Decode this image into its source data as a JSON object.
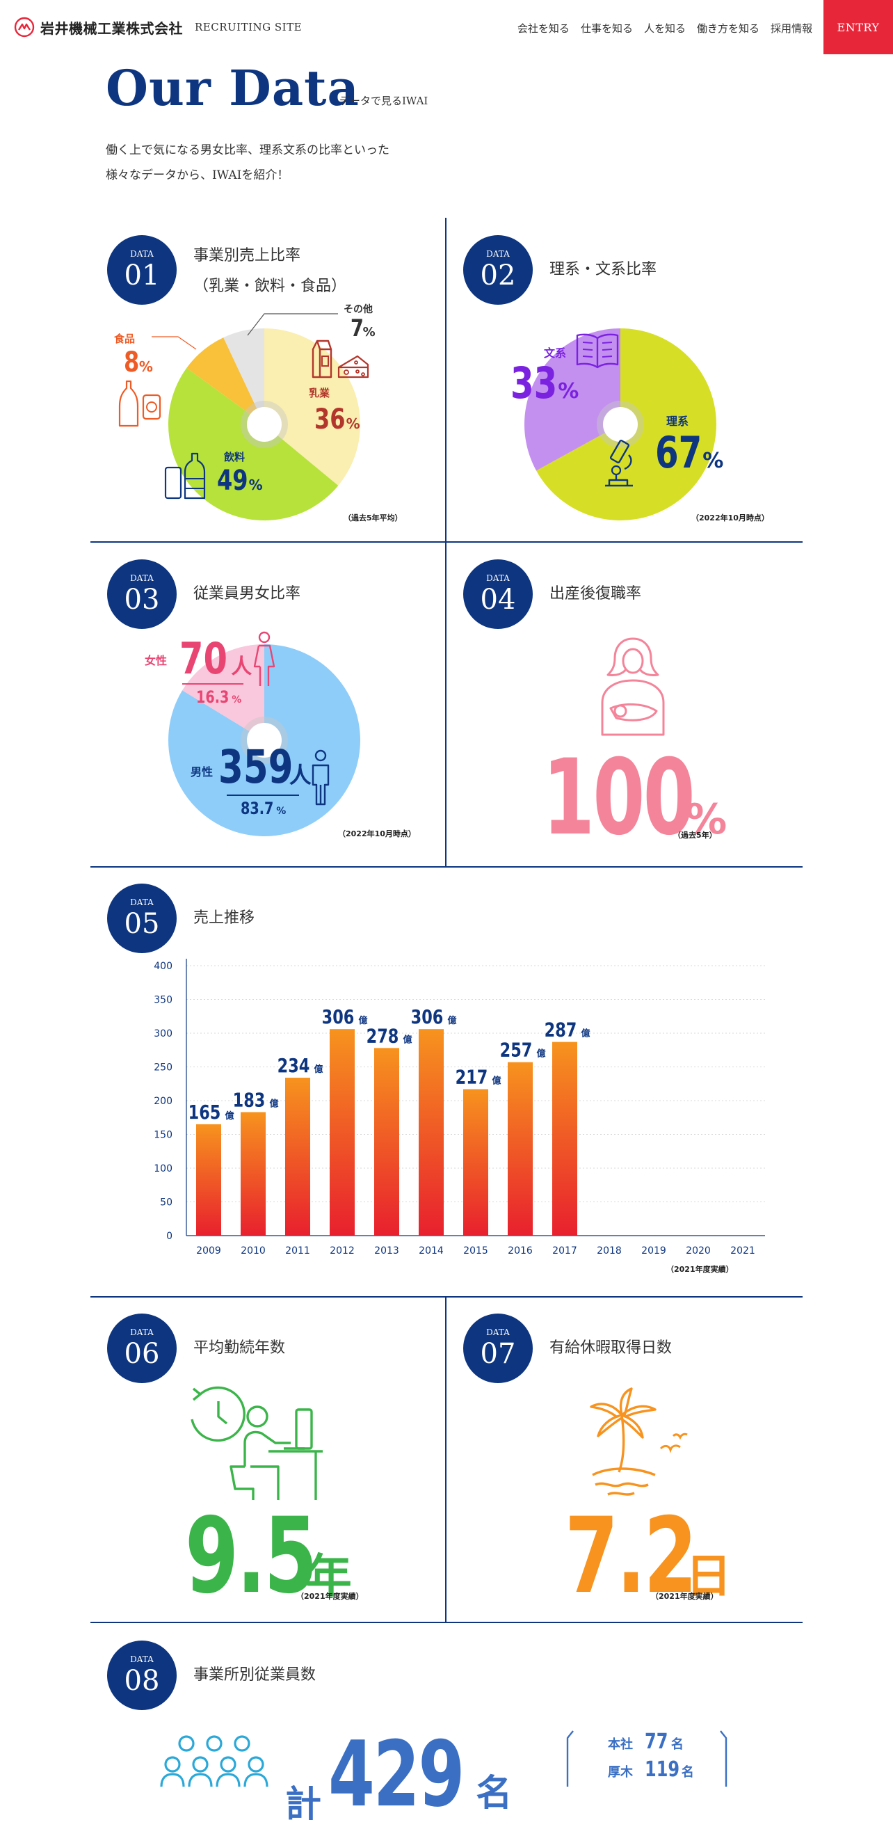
{
  "header": {
    "company_name": "岩井機械工業株式会社",
    "site_label": "RECRUITING SITE",
    "nav": [
      "会社を知る",
      "仕事を知る",
      "人を知る",
      "働き方を知る",
      "採用情報"
    ],
    "entry": "ENTRY"
  },
  "hero": {
    "title": "Our Data",
    "subtitle": "データで見るIWAI",
    "intro_line1": "働く上で気になる男女比率、理系文系の比率といった",
    "intro_line2": "様々なデータから、IWAIを紹介！"
  },
  "badge_label": "DATA",
  "data01": {
    "num": "01",
    "title_line1": "事業別売上比率",
    "title_line2": "（乳業・飲料・食品）",
    "note": "（過去5年平均）",
    "segments": [
      {
        "label": "乳業",
        "value": 36,
        "pct": "36",
        "color": "#faeeb0",
        "text_color": "#b3362c"
      },
      {
        "label": "飲料",
        "value": 49,
        "pct": "49",
        "color": "#b6e23b",
        "text_color": "#0d3580"
      },
      {
        "label": "食品",
        "value": 8,
        "pct": "8",
        "color": "#f9c13a",
        "text_color": "#ef5b25"
      },
      {
        "label": "その他",
        "value": 7,
        "pct": "7",
        "color": "#e4e4e4",
        "text_color": "#333333"
      }
    ]
  },
  "data02": {
    "num": "02",
    "title": "理系・文系比率",
    "note": "（2022年10月時点）",
    "segments": [
      {
        "label": "理系",
        "value": 67,
        "pct": "67",
        "color": "#d6df26",
        "text_color": "#0d3580"
      },
      {
        "label": "文系",
        "value": 33,
        "pct": "33",
        "color": "#c490f0",
        "text_color": "#7a22e0"
      }
    ]
  },
  "data03": {
    "num": "03",
    "title": "従業員男女比率",
    "note": "（2022年10月時点）",
    "female_label": "女性",
    "female_count": "70",
    "female_pct": "16.3",
    "male_label": "男性",
    "male_count": "359",
    "male_pct": "83.7",
    "unit": "人",
    "female_value": 16.3,
    "male_value": 83.7,
    "colors": {
      "female": "#f9c8dc",
      "male": "#8ecdf9",
      "female_text": "#e94573",
      "male_text": "#0d3580"
    }
  },
  "data04": {
    "num": "04",
    "title": "出産後復職率",
    "value": "100",
    "unit": "%",
    "note": "（過去5年）",
    "color": "#f4849a"
  },
  "data05": {
    "num": "05",
    "title": "売上推移",
    "note": "（2021年度実績）",
    "value_unit": "億"
  },
  "chart_data": {
    "type": "bar",
    "categories": [
      "2009",
      "2010",
      "2011",
      "2012",
      "2013",
      "2014",
      "2015",
      "2016",
      "2017",
      "2018",
      "2019",
      "2020",
      "2021"
    ],
    "values": [
      165,
      183,
      234,
      306,
      278,
      306,
      217,
      257,
      287,
      null,
      null,
      null,
      null
    ],
    "value_labels": [
      "165",
      "183",
      "234",
      "306",
      "278",
      "306",
      "217",
      "257",
      "287",
      "",
      "",
      "",
      ""
    ],
    "yticks": [
      "0",
      "50",
      "100",
      "150",
      "200",
      "250",
      "300",
      "350",
      "400"
    ],
    "ylim": [
      0,
      400
    ],
    "grid": true
  },
  "data06": {
    "num": "06",
    "title": "平均勤続年数",
    "value": "9.5",
    "unit": "年",
    "note": "（2021年度実績）",
    "color": "#3bb54a"
  },
  "data07": {
    "num": "07",
    "title": "有給休暇取得日数",
    "value": "7.2",
    "unit": "日",
    "note": "（2021年度実績）",
    "color": "#f7931e"
  },
  "data08": {
    "num": "08",
    "title": "事業所別従業員数",
    "total_prefix": "計",
    "total_value": "429",
    "total_unit": "名",
    "offices": [
      {
        "name": "本社",
        "count": "77",
        "unit": "名"
      },
      {
        "name": "厚木",
        "count": "119",
        "unit": "名"
      }
    ],
    "color": "#3a6fc4",
    "icon_color": "#2aa8d8"
  }
}
